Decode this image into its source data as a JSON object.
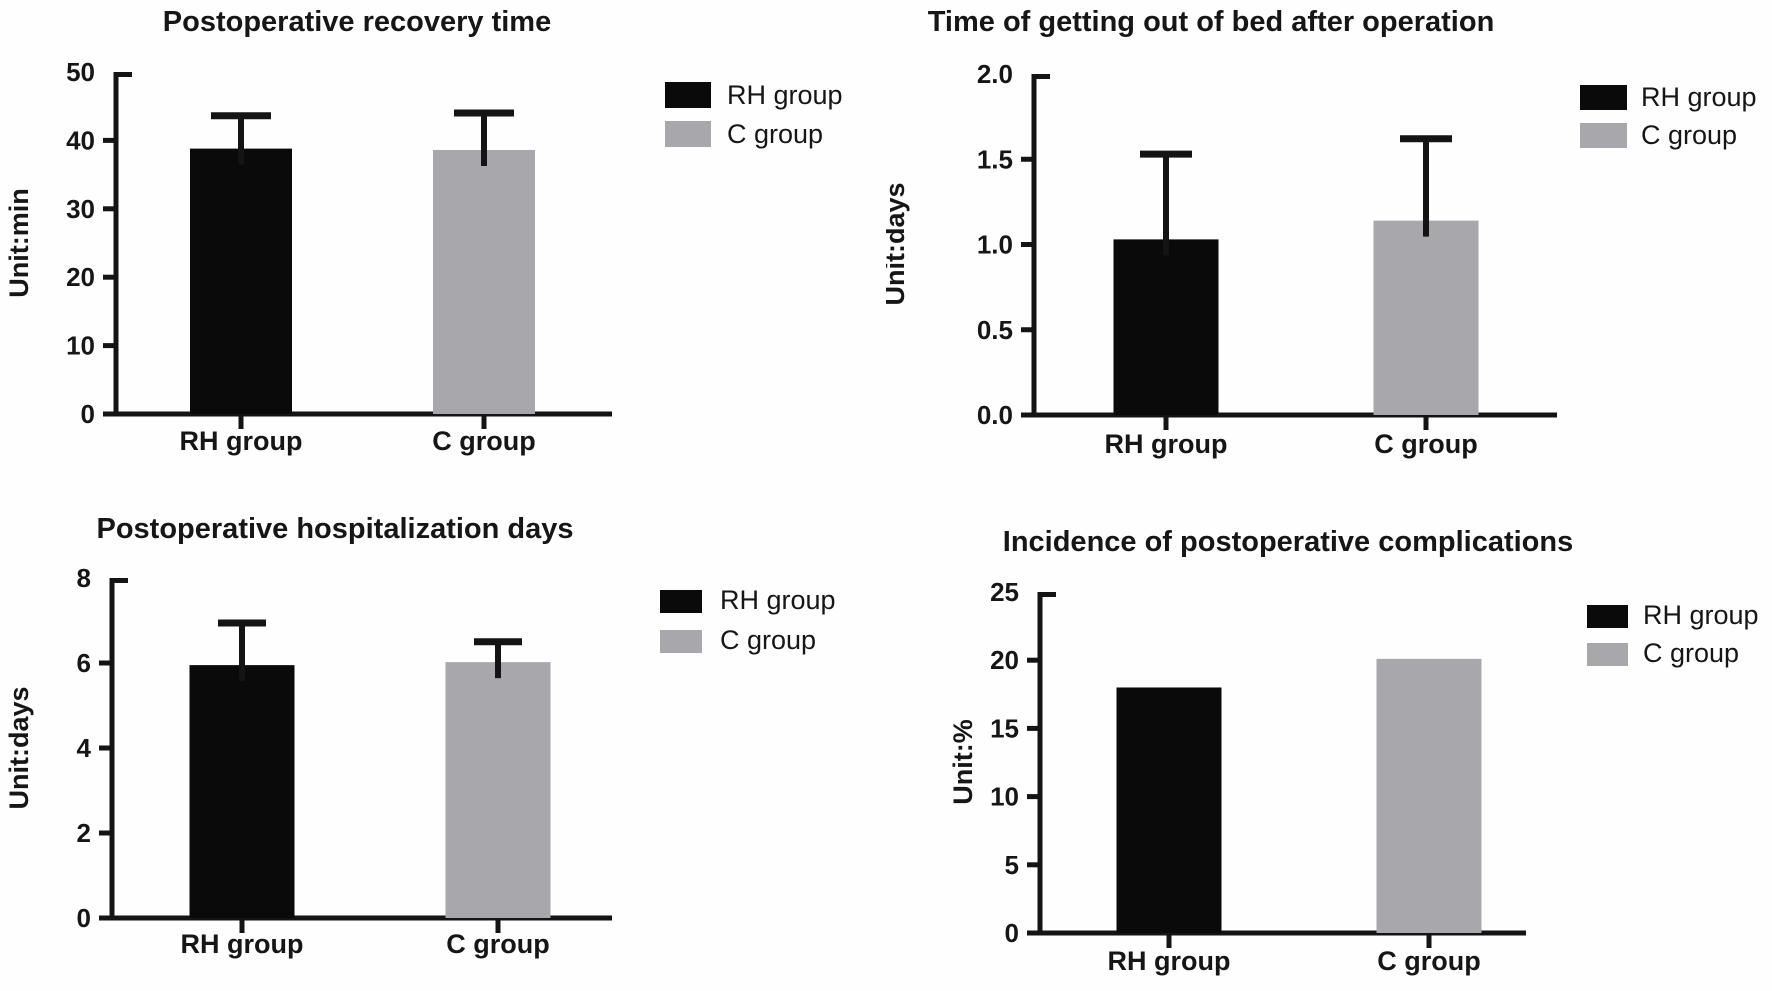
{
  "figure": {
    "background": "#fefefe",
    "text_color": "#161616",
    "axis_color": "#141414"
  },
  "palette": {
    "rh": "#0a0a0a",
    "c": "#a8a8ac"
  },
  "legend": {
    "items": [
      {
        "label": "RH group",
        "color_key": "rh"
      },
      {
        "label": "C group",
        "color_key": "c"
      }
    ],
    "position": "top-right"
  },
  "chart_data": [
    {
      "type": "bar",
      "title": "Postoperative recovery time",
      "xlabel": "",
      "ylabel": "Unit:min",
      "categories": [
        "RH group",
        "C group"
      ],
      "values": [
        38.8,
        38.6
      ],
      "error_tops": [
        43.6,
        44.0
      ],
      "bar_color_keys": [
        "rh",
        "c"
      ],
      "ylim": [
        0,
        50
      ],
      "yticks": [
        0,
        10,
        20,
        30,
        40,
        50
      ],
      "ytick_labels": [
        "0",
        "10",
        "20",
        "30",
        "40",
        "50"
      ],
      "legend": [
        "RH group",
        "C group"
      ],
      "legend_position": "top-right",
      "grid": false
    },
    {
      "type": "bar",
      "title": "Time of getting out of bed after operation",
      "xlabel": "",
      "ylabel": "Unit:days",
      "categories": [
        "RH group",
        "C group"
      ],
      "values": [
        1.03,
        1.14
      ],
      "error_tops": [
        1.53,
        1.62
      ],
      "bar_color_keys": [
        "rh",
        "c"
      ],
      "ylim": [
        0,
        2.0
      ],
      "yticks": [
        0,
        0.5,
        1.0,
        1.5,
        2.0
      ],
      "ytick_labels": [
        "0.0",
        "0.5",
        "1.0",
        "1.5",
        "2.0"
      ],
      "legend": [
        "RH group",
        "C group"
      ],
      "legend_position": "top-right",
      "grid": false
    },
    {
      "type": "bar",
      "title": "Postoperative hospitalization days",
      "xlabel": "",
      "ylabel": "Unit:days",
      "categories": [
        "RH group",
        "C group"
      ],
      "values": [
        5.95,
        6.02
      ],
      "error_tops": [
        6.94,
        6.5
      ],
      "bar_color_keys": [
        "rh",
        "c"
      ],
      "ylim": [
        0,
        8
      ],
      "yticks": [
        0,
        2,
        4,
        6,
        8
      ],
      "ytick_labels": [
        "0",
        "2",
        "4",
        "6",
        "8"
      ],
      "legend": [
        "RH group",
        "C group"
      ],
      "legend_position": "top-right",
      "grid": false
    },
    {
      "type": "bar",
      "title": "Incidence of postoperative complications",
      "xlabel": "",
      "ylabel": "Unit:%",
      "categories": [
        "RH group",
        "C group"
      ],
      "values": [
        18.0,
        20.1
      ],
      "error_tops": null,
      "bar_color_keys": [
        "rh",
        "c"
      ],
      "ylim": [
        0,
        25
      ],
      "yticks": [
        0,
        5,
        10,
        15,
        20,
        25
      ],
      "ytick_labels": [
        "0",
        "5",
        "10",
        "15",
        "20",
        "25"
      ],
      "legend": [
        "RH group",
        "C group"
      ],
      "legend_position": "top-right",
      "grid": false
    }
  ]
}
